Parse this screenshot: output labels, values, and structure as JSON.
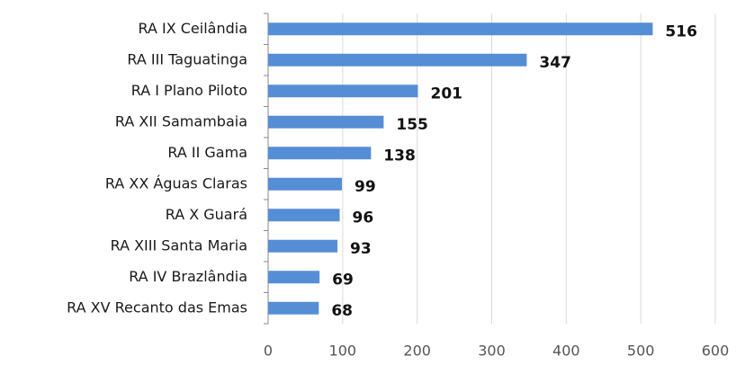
{
  "chart_data": {
    "type": "bar",
    "orientation": "horizontal",
    "categories": [
      "RA IX Ceilândia",
      "RA III Taguatinga",
      "RA I Plano Piloto",
      "RA XII Samambaia",
      "RA II Gama",
      "RA XX Águas Claras",
      "RA X Guará",
      "RA XIII Santa Maria",
      "RA IV Brazlândia",
      "RA XV Recanto das Emas"
    ],
    "values": [
      516,
      347,
      201,
      155,
      138,
      99,
      96,
      93,
      69,
      68
    ],
    "color": "#558ed5",
    "xlim": [
      0,
      600
    ],
    "xticks": [
      0,
      100,
      200,
      300,
      400,
      500,
      600
    ],
    "grid": true
  }
}
